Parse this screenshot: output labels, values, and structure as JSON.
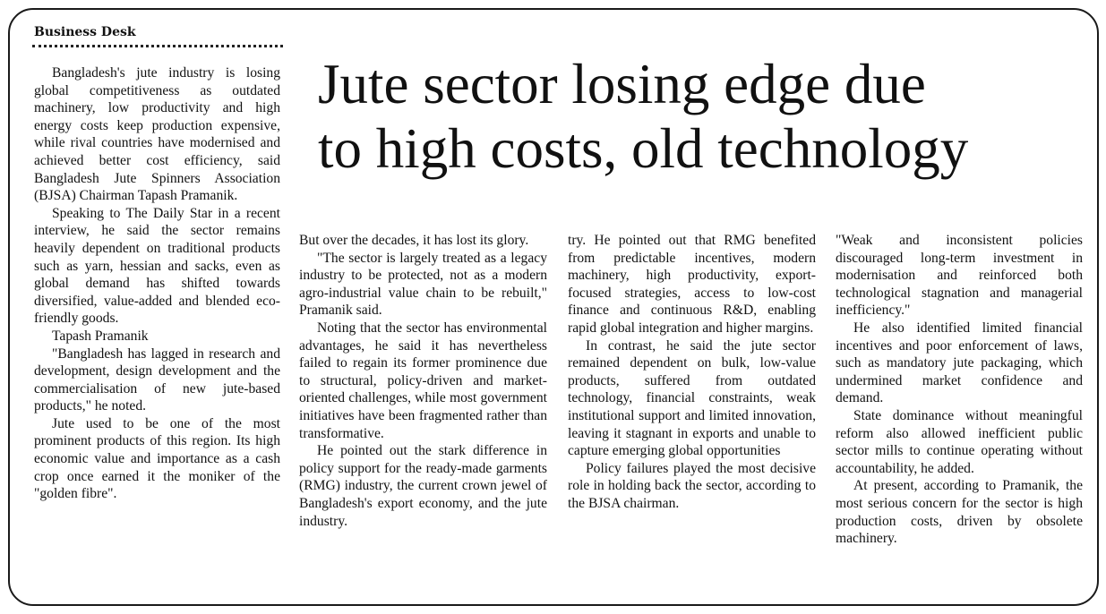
{
  "section": "Business Desk",
  "headline": {
    "line1": "Jute sector losing edge due",
    "line2": "to high costs, old technology"
  },
  "columns": [
    [
      {
        "text": "Bangladesh's jute industry is losing global competitiveness as outdated machinery, low productivity and high energy costs keep production expensive, while rival countries have modernised and achieved better cost efficiency, said Bangladesh Jute Spinners Association (BJSA) Chairman Tapash Pramanik.",
        "indent": true
      },
      {
        "text": "Speaking to The Daily Star in a recent interview, he said the sector remains heavily dependent on traditional products such as yarn, hessian and sacks, even as global demand has shifted towards diversified, value-added and blended eco-friendly goods.",
        "indent": true
      },
      {
        "text": "Tapash Pramanik",
        "indent": true
      },
      {
        "text": "\"Bangladesh has lagged in research and development, design development and the commercialisation of new jute-based products,\" he noted.",
        "indent": true
      },
      {
        "text": "Jute used to be one of the most prominent products of this region. Its high economic value and importance as a cash crop once earned it the moniker of the \"golden fibre\".",
        "indent": true
      }
    ],
    [
      {
        "text": "But over the decades, it has lost its glory.",
        "indent": false
      },
      {
        "text": "\"The sector is largely treated as a legacy industry to be protected, not as a modern agro-industrial value chain to be rebuilt,\" Pramanik said.",
        "indent": true
      },
      {
        "text": "Noting that the sector has environmental advantages, he said it has nevertheless failed to regain its former prominence due to structural, policy-driven and market-oriented challenges, while most government initiatives have been fragmented rather than transformative.",
        "indent": true
      },
      {
        "text": "He pointed out the stark difference in policy support for the ready-made garments (RMG) industry, the current crown jewel of Bangladesh's export economy, and the jute industry.",
        "indent": true
      }
    ],
    [
      {
        "text": "try. He pointed out that RMG benefited from predictable incentives, modern machinery, high productivity, export-focused strategies, access to low-cost finance and continuous R&D, enabling rapid global integration and higher margins.",
        "indent": false
      },
      {
        "text": "In contrast, he said the jute sector remained dependent on bulk, low-value products, suffered from outdated technology, financial constraints, weak institutional support and limited innovation, leaving it stagnant in exports and unable to capture emerging global opportunities",
        "indent": true
      },
      {
        "text": "Policy failures played the most decisive role in holding back the sector, according to the BJSA chairman.",
        "indent": true
      }
    ],
    [
      {
        "text": "\"Weak and inconsistent policies discouraged long-term investment in modernisation and reinforced both technological stagnation and managerial inefficiency.\"",
        "indent": false
      },
      {
        "text": "He also identified limited financial incentives and poor enforcement of laws, such as mandatory jute packaging, which undermined market confidence and demand.",
        "indent": true
      },
      {
        "text": "State dominance without meaningful reform also allowed inefficient public sector mills to continue operating without accountability, he added.",
        "indent": true
      },
      {
        "text": "At present, according to Pramanik, the most serious concern for the sector is high production costs, driven by obsolete machinery.",
        "indent": true
      }
    ]
  ]
}
